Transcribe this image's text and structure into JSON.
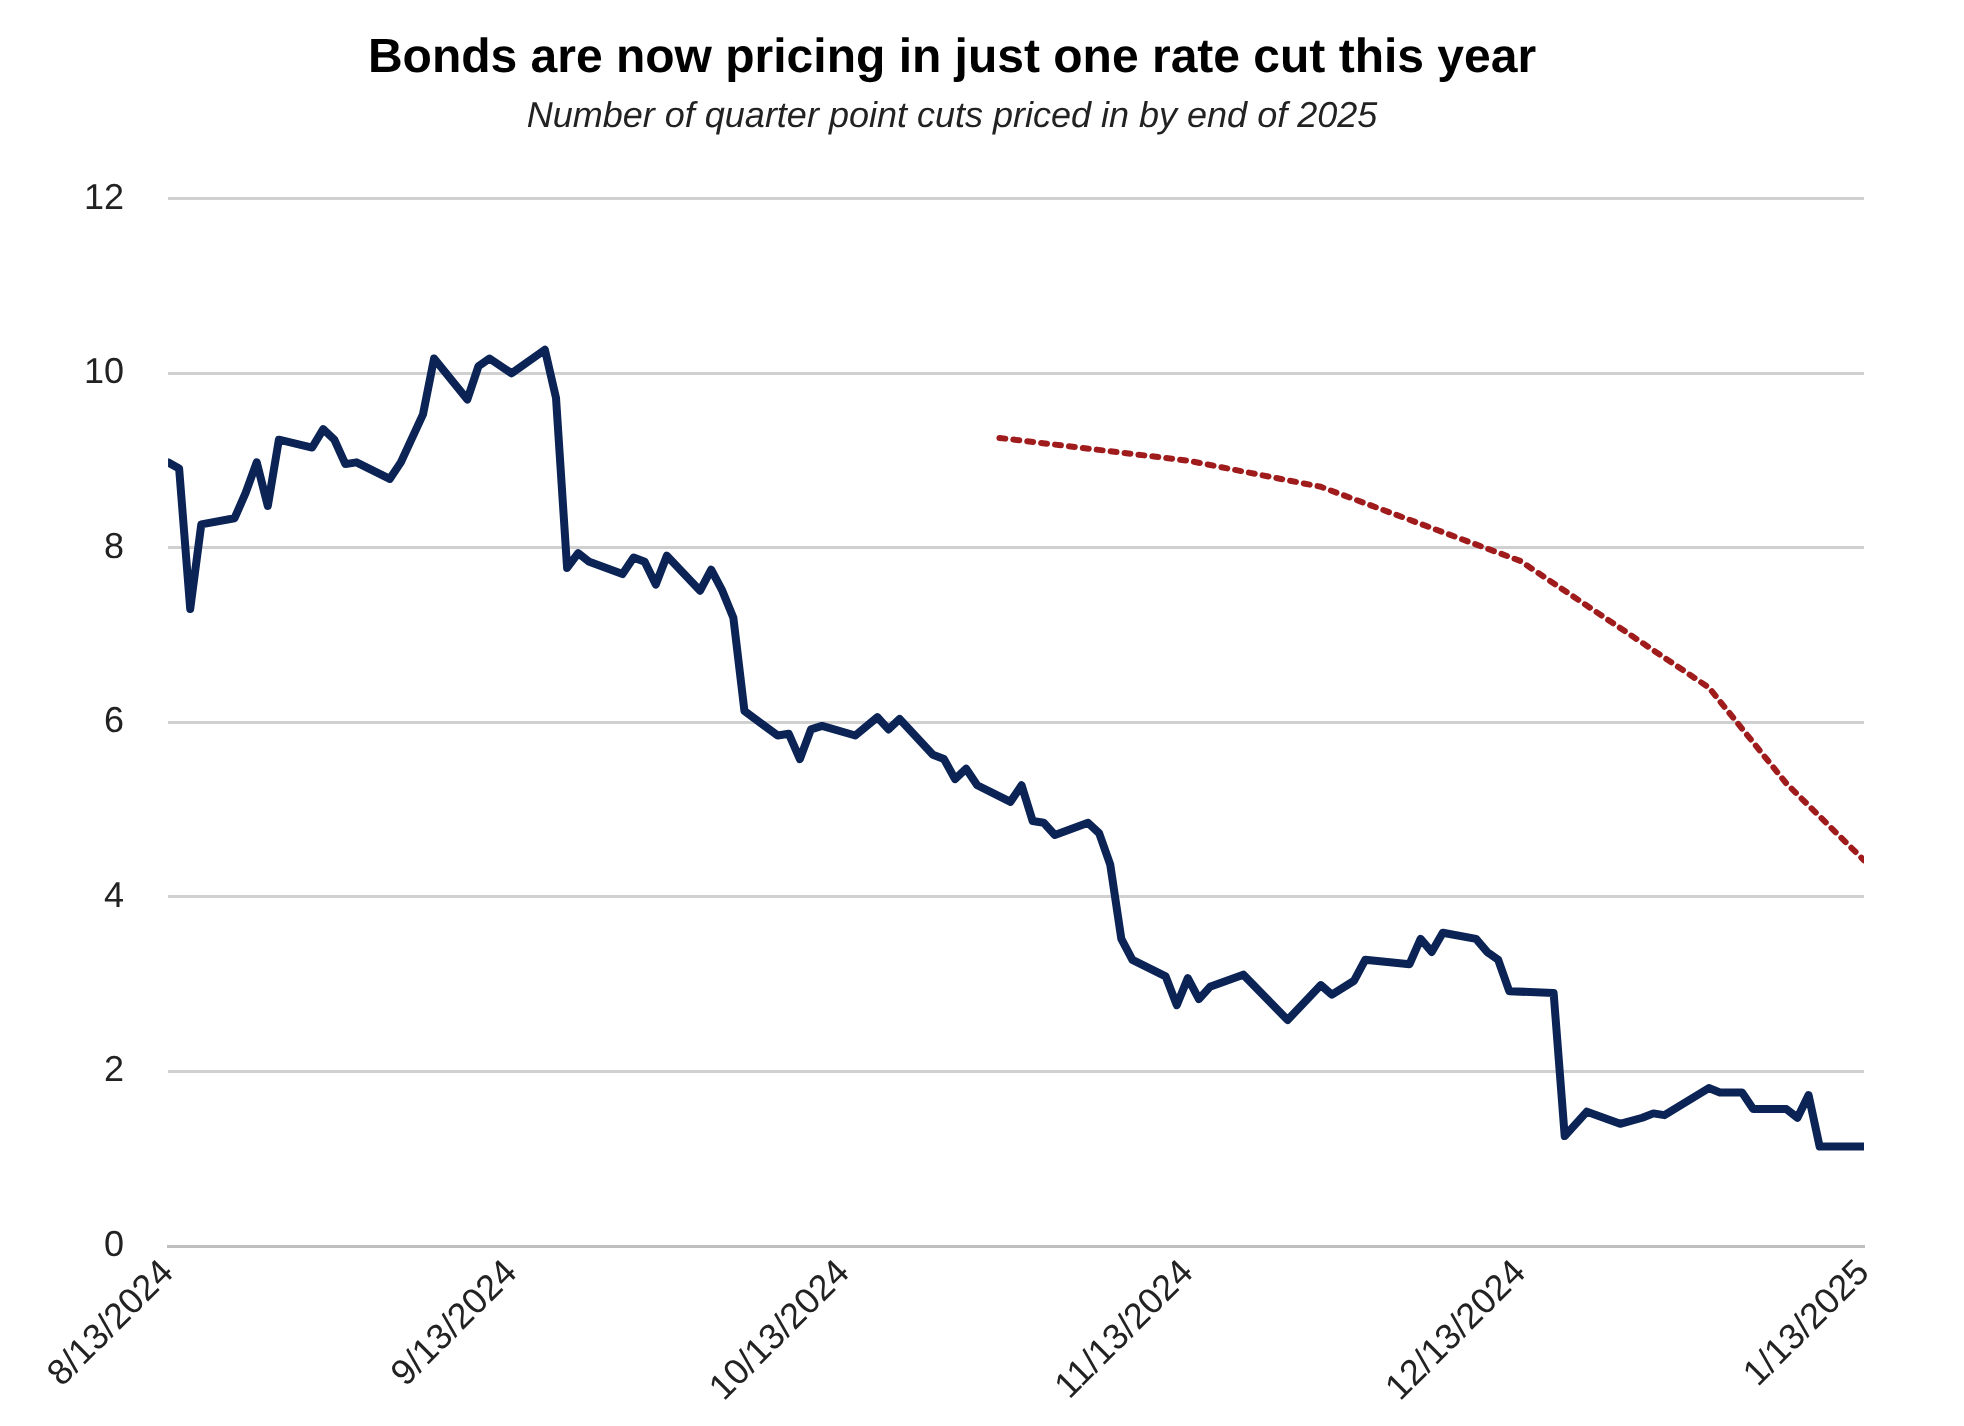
{
  "chart_data": {
    "type": "line",
    "title": "Bonds are now pricing in just one rate cut this year",
    "subtitle": "Number of quarter point cuts priced in by end of 2025",
    "xlim": [
      "2024-08-13",
      "2025-01-13"
    ],
    "xticks": [
      {
        "value": "2024-08-13",
        "label": "8/13/2024"
      },
      {
        "value": "2024-09-13",
        "label": "9/13/2024"
      },
      {
        "value": "2024-10-13",
        "label": "10/13/2024"
      },
      {
        "value": "2024-11-13",
        "label": "11/13/2024"
      },
      {
        "value": "2024-12-13",
        "label": "12/13/2024"
      },
      {
        "value": "2025-01-13",
        "label": "1/13/2025"
      }
    ],
    "ylim": [
      0,
      12
    ],
    "yticks": [
      0,
      2,
      4,
      6,
      8,
      10,
      12
    ],
    "grid": "y",
    "legend": false,
    "marker": "none",
    "line_style": "solid",
    "series": [
      {
        "color": "#0b2455",
        "x": [
          "2024-08-13",
          "2024-08-14",
          "2024-08-15",
          "2024-08-16",
          "2024-08-19",
          "2024-08-20",
          "2024-08-21",
          "2024-08-22",
          "2024-08-23",
          "2024-08-26",
          "2024-08-27",
          "2024-08-28",
          "2024-08-29",
          "2024-08-30",
          "2024-09-02",
          "2024-09-03",
          "2024-09-05",
          "2024-09-06",
          "2024-09-09",
          "2024-09-10",
          "2024-09-11",
          "2024-09-13",
          "2024-09-16",
          "2024-09-17",
          "2024-09-18",
          "2024-09-19",
          "2024-09-20",
          "2024-09-23",
          "2024-09-24",
          "2024-09-25",
          "2024-09-26",
          "2024-09-27",
          "2024-09-30",
          "2024-10-01",
          "2024-10-02",
          "2024-10-03",
          "2024-10-04",
          "2024-10-07",
          "2024-10-08",
          "2024-10-09",
          "2024-10-10",
          "2024-10-11",
          "2024-10-14",
          "2024-10-16",
          "2024-10-17",
          "2024-10-18",
          "2024-10-21",
          "2024-10-22",
          "2024-10-23",
          "2024-10-24",
          "2024-10-25",
          "2024-10-28",
          "2024-10-29",
          "2024-10-30",
          "2024-10-31",
          "2024-11-01",
          "2024-11-04",
          "2024-11-05",
          "2024-11-06",
          "2024-11-07",
          "2024-11-08",
          "2024-11-11",
          "2024-11-12",
          "2024-11-13",
          "2024-11-14",
          "2024-11-15",
          "2024-11-18",
          "2024-11-22",
          "2024-11-25",
          "2024-11-26",
          "2024-11-28",
          "2024-11-29",
          "2024-12-03",
          "2024-12-04",
          "2024-12-05",
          "2024-12-06",
          "2024-12-09",
          "2024-12-10",
          "2024-12-11",
          "2024-12-12",
          "2024-12-16",
          "2024-12-17",
          "2024-12-19",
          "2024-12-22",
          "2024-12-24",
          "2024-12-25",
          "2024-12-26",
          "2024-12-30",
          "2024-12-31",
          "2025-01-02",
          "2025-01-03",
          "2025-01-06",
          "2025-01-07",
          "2025-01-08",
          "2025-01-09",
          "2025-01-13"
        ],
        "values": [
          8.98,
          8.91,
          7.3,
          8.27,
          8.34,
          8.63,
          8.98,
          8.48,
          9.24,
          9.15,
          9.36,
          9.24,
          8.96,
          8.98,
          8.79,
          8.98,
          9.53,
          10.17,
          9.7,
          10.08,
          10.17,
          10.0,
          10.27,
          9.72,
          7.77,
          7.94,
          7.84,
          7.7,
          7.89,
          7.84,
          7.58,
          7.91,
          7.51,
          7.75,
          7.51,
          7.2,
          6.13,
          5.85,
          5.87,
          5.58,
          5.92,
          5.96,
          5.85,
          6.06,
          5.92,
          6.04,
          5.63,
          5.58,
          5.35,
          5.47,
          5.28,
          5.09,
          5.28,
          4.87,
          4.85,
          4.71,
          4.85,
          4.73,
          4.37,
          3.52,
          3.28,
          3.09,
          2.76,
          3.07,
          2.83,
          2.97,
          3.11,
          2.59,
          2.99,
          2.88,
          3.04,
          3.28,
          3.23,
          3.52,
          3.37,
          3.59,
          3.52,
          3.37,
          3.28,
          2.92,
          2.9,
          1.26,
          1.54,
          1.4,
          1.47,
          1.52,
          1.5,
          1.81,
          1.76,
          1.76,
          1.57,
          1.57,
          1.47,
          1.73,
          1.14,
          1.14
        ]
      },
      {
        "color": "#a01c1c",
        "line_style": "dotted",
        "x": [
          "2024-10-27",
          "2024-11-13",
          "2024-11-25",
          "2024-12-13",
          "2024-12-30",
          "2025-01-06",
          "2025-01-13"
        ],
        "values": [
          9.26,
          9.0,
          8.7,
          7.85,
          6.4,
          5.3,
          4.42
        ]
      }
    ]
  }
}
